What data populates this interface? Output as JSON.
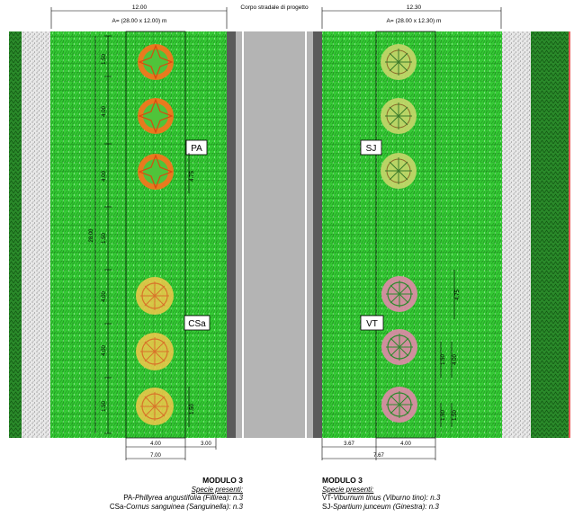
{
  "header": {
    "left_width": "12.00",
    "left_area": "A= (28.00 x 12.00) m",
    "road_label": "Corpo stradale di progetto",
    "right_width": "12.30",
    "right_area": "A= (28.00 x 12.30) m"
  },
  "tags": {
    "pa": "PA",
    "csa": "CSa",
    "sj": "SJ",
    "vt": "VT"
  },
  "left_dims": {
    "d1": "1.50",
    "d2": "4.00",
    "d3": "4.00",
    "d4": "1.50",
    "d5": "4.00",
    "d6": "4.00",
    "d7": "1.50",
    "total": "28.00",
    "inner_a": "4.75",
    "inner_b": "3.00",
    "small": "1.50",
    "bottom_a": "4.00",
    "bottom_b": "3.00",
    "bottom_total": "7.00"
  },
  "right_dims": {
    "v1": "4.75",
    "v2": "1.50",
    "v3": "4.00",
    "v4": "1.50",
    "v5": "1.50",
    "bottom_a": "3.67",
    "bottom_b": "4.00",
    "bottom_total": "7.67"
  },
  "legend_left": {
    "title": "MODULO 3",
    "subtitle": "Specie presenti:",
    "line1_code": "PA-",
    "line1_name": "Phillyrea angustifolia (Fillirea): n.3",
    "line2_code": "CSa-",
    "line2_name": "Cornus sanguinea (Sanguinella): n.3"
  },
  "legend_right": {
    "title": "MODULO 3",
    "subtitle": "Specie presenti:",
    "line1_code": "VT-",
    "line1_name": "Viburnum tinus (Viburno tino): n.3",
    "line2_code": "SJ-",
    "line2_name": "Spartium junceum (Ginestra): n.3"
  },
  "colors": {
    "grass": "#2ecc2e",
    "grass_dark": "#1e8f1e",
    "gravel": "#cfcfcf",
    "road": "#b4b4b4",
    "canopy_orange": "#e87a1e",
    "canopy_green": "#4fc43a",
    "canopy_pink": "#e08aa8",
    "tree_yellow": "#e8b83a",
    "red_edge": "#e02020"
  }
}
